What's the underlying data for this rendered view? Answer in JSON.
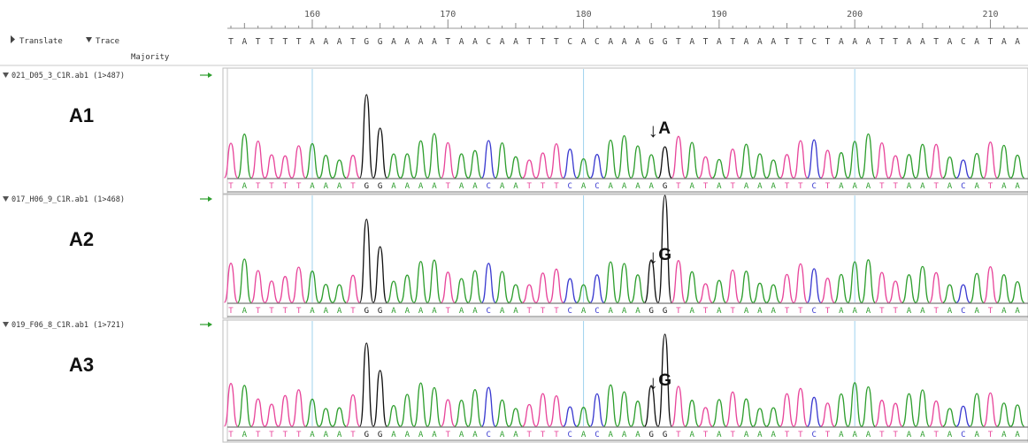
{
  "ruler": {
    "ticks": [
      "160",
      "170",
      "180",
      "190",
      "200",
      "210"
    ]
  },
  "header": {
    "translate_label": "Translate",
    "trace_label": "Trace",
    "majority_label": "Majority"
  },
  "majority_sequence": "TATTTTAAATGGAAAATAACAATTTCACAAAGGTATATAAATTCTAAATTAATACATAA",
  "colors": {
    "A": "#2e9e2e",
    "T": "#e8459a",
    "C": "#3a3ad0",
    "G": "#111111",
    "guide": "#9fd3ee"
  },
  "tracks": [
    {
      "file_label": "021_D05_3_C1R.ab1 (1>487)",
      "sample_label": "A1",
      "mutation_label": "A",
      "arrow_glyph": "↓",
      "sequence": "TATTTTAAATGGAAAATAACAATTTCACAAAAGTATATAAATTCTAAATTAATACATAA"
    },
    {
      "file_label": "017_H06_9_C1R.ab1 (1>468)",
      "sample_label": "A2",
      "mutation_label": "G",
      "arrow_glyph": "↓",
      "sequence": "TATTTTAAATGGAAAATAACAATTTCACAAAGGTATATAAATTCTAAATTAATACATAA"
    },
    {
      "file_label": "019_F06_8_C1R.ab1 (1>721)",
      "sample_label": "A3",
      "mutation_label": "G",
      "arrow_glyph": "↓",
      "sequence": "TATTTTAAATGGAAAATAACAATTTCACAAAGGTATATAAATTCTAAATTAATACATAA"
    }
  ]
}
